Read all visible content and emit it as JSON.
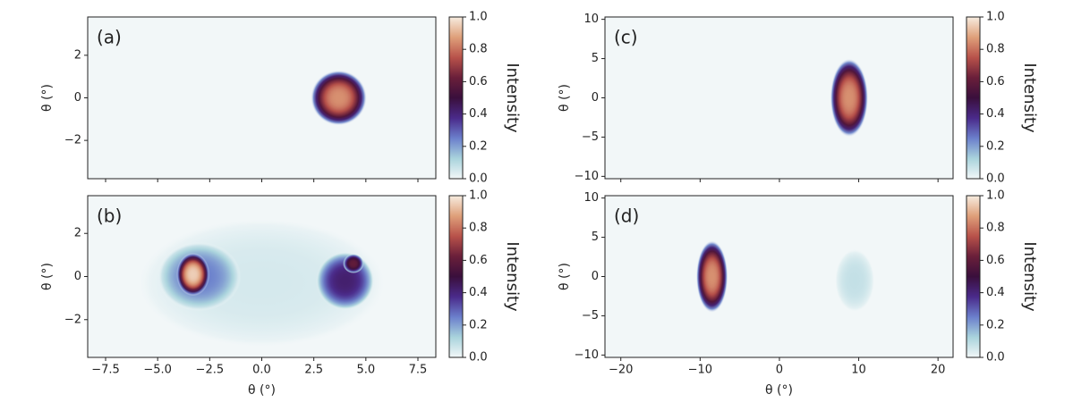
{
  "chart_data": [
    {
      "type": "heatmap",
      "label": "(a)",
      "ylabel": "θ (°)",
      "xlim": [
        -8.36,
        8.36
      ],
      "ylim": [
        -3.8,
        3.8
      ],
      "xticks": [
        {
          "value": -7.5,
          "label": "−7.5"
        },
        {
          "value": -5,
          "label": "−5.0"
        },
        {
          "value": -2.5,
          "label": "−2.5"
        },
        {
          "value": 0,
          "label": "0.0"
        },
        2.5,
        {
          "value": 5,
          "label": "5.0"
        },
        7.5
      ],
      "yticks": [
        {
          "value": -2,
          "label": "−2"
        },
        0,
        2
      ],
      "show_xticklabels": false,
      "spots": [
        {
          "x": 3.7,
          "y": 0,
          "rx": 1.35,
          "ry": 1.3,
          "peak": 0.85
        }
      ],
      "colorbar": {
        "label": "Intensity",
        "lim": [
          0,
          1
        ],
        "colormap": [
          "#f2f7f8",
          "#a9d3dc",
          "#6b7fcc",
          "#4a2a8a",
          "#3a0f3c",
          "#6a1f3a",
          "#b8524a",
          "#dfa07a",
          "#f7ece0"
        ],
        "ticks": [
          {
            "value": 0,
            "label": "0.0"
          },
          0.2,
          0.4,
          0.6,
          0.8,
          {
            "value": 1,
            "label": "1.0"
          }
        ]
      }
    },
    {
      "type": "heatmap",
      "label": "(b)",
      "ylabel": "θ (°)",
      "xlabel": "θ (°)",
      "xlim": [
        -8.36,
        8.36
      ],
      "ylim": [
        -3.75,
        3.75
      ],
      "xticks": [
        {
          "value": -7.5,
          "label": "−7.5"
        },
        {
          "value": -5,
          "label": "−5.0"
        },
        {
          "value": -2.5,
          "label": "−2.5"
        },
        {
          "value": 0,
          "label": "0.0"
        },
        2.5,
        {
          "value": 5,
          "label": "5.0"
        },
        7.5
      ],
      "yticks": [
        {
          "value": -2,
          "label": "−2"
        },
        0,
        2
      ],
      "show_xticklabels": true,
      "spots": [
        {
          "x": 0,
          "y": -0.3,
          "rx": 6,
          "ry": 3,
          "peak": 0.05
        },
        {
          "x": -3.0,
          "y": 0,
          "rx": 2.0,
          "ry": 1.6,
          "peak": 0.25
        },
        {
          "x": -3.3,
          "y": 0.1,
          "rx": 0.8,
          "ry": 1.0,
          "peak": 0.95
        },
        {
          "x": 4.0,
          "y": -0.2,
          "rx": 1.4,
          "ry": 1.35,
          "peak": 0.42
        },
        {
          "x": 4.4,
          "y": 0.6,
          "rx": 0.5,
          "ry": 0.45,
          "peak": 0.6
        }
      ],
      "colorbar": {
        "label": "Intensity",
        "lim": [
          0,
          1
        ],
        "colormap": [
          "#f2f7f8",
          "#a9d3dc",
          "#6b7fcc",
          "#4a2a8a",
          "#3a0f3c",
          "#6a1f3a",
          "#b8524a",
          "#dfa07a",
          "#f7ece0"
        ],
        "ticks": [
          {
            "value": 0,
            "label": "0.0"
          },
          0.2,
          0.4,
          0.6,
          0.8,
          {
            "value": 1,
            "label": "1.0"
          }
        ]
      }
    },
    {
      "type": "heatmap",
      "label": "(c)",
      "ylabel": "θ (°)",
      "xlim": [
        -22,
        21.9
      ],
      "ylim": [
        -10.3,
        10.3
      ],
      "xticks": [
        {
          "value": -20,
          "label": "−20"
        },
        {
          "value": -10,
          "label": "−10"
        },
        0,
        10,
        20
      ],
      "yticks": [
        {
          "value": -10,
          "label": "−10"
        },
        {
          "value": -5,
          "label": "−5"
        },
        0,
        5,
        10
      ],
      "show_xticklabels": false,
      "spots": [
        {
          "x": 8.8,
          "y": 0,
          "rx": 2.4,
          "ry": 5,
          "peak": 0.85
        }
      ],
      "colorbar": {
        "label": "Intensity",
        "lim": [
          0,
          1
        ],
        "colormap": [
          "#f2f7f8",
          "#a9d3dc",
          "#6b7fcc",
          "#4a2a8a",
          "#3a0f3c",
          "#6a1f3a",
          "#b8524a",
          "#dfa07a",
          "#f7ece0"
        ],
        "ticks": [
          {
            "value": 0,
            "label": "0.0"
          },
          0.2,
          0.4,
          0.6,
          0.8,
          {
            "value": 1,
            "label": "1.0"
          }
        ]
      }
    },
    {
      "type": "heatmap",
      "label": "(d)",
      "ylabel": "θ (°)",
      "xlabel": "θ (°)",
      "xlim": [
        -22,
        21.9
      ],
      "ylim": [
        -10.3,
        10.3
      ],
      "xticks": [
        {
          "value": -20,
          "label": "−20"
        },
        {
          "value": -10,
          "label": "−10"
        },
        0,
        10,
        20
      ],
      "yticks": [
        {
          "value": -10,
          "label": "−10"
        },
        {
          "value": -5,
          "label": "−5"
        },
        0,
        5,
        10
      ],
      "show_xticklabels": true,
      "spots": [
        {
          "x": 9.5,
          "y": -0.5,
          "rx": 2.5,
          "ry": 4,
          "peak": 0.08
        },
        {
          "x": -8.5,
          "y": 0,
          "rx": 2.0,
          "ry": 4.6,
          "peak": 0.85
        }
      ],
      "colorbar": {
        "label": "Intensity",
        "lim": [
          0,
          1
        ],
        "colormap": [
          "#f2f7f8",
          "#a9d3dc",
          "#6b7fcc",
          "#4a2a8a",
          "#3a0f3c",
          "#6a1f3a",
          "#b8524a",
          "#dfa07a",
          "#f7ece0"
        ],
        "ticks": [
          {
            "value": 0,
            "label": "0.0"
          },
          0.2,
          0.4,
          0.6,
          0.8,
          {
            "value": 1,
            "label": "1.0"
          }
        ]
      }
    }
  ]
}
